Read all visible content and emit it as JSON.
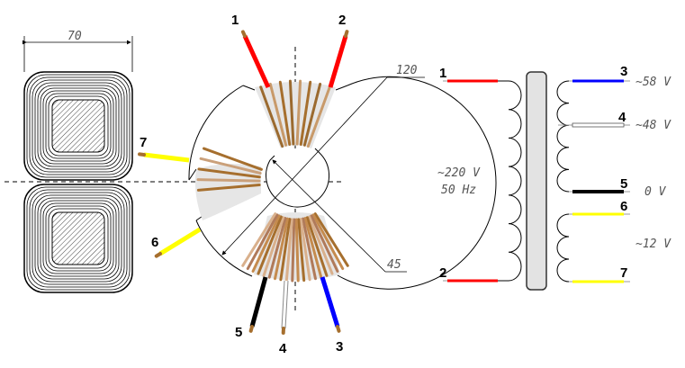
{
  "cross_section": {
    "width_label": "70"
  },
  "toroid": {
    "outer_diameter_label": "120",
    "inner_diameter_label": "45",
    "leads": [
      {
        "id": "1",
        "color": "#ff0000"
      },
      {
        "id": "2",
        "color": "#ff0000"
      },
      {
        "id": "3",
        "color": "#0000ff"
      },
      {
        "id": "4",
        "color": "#ffffff"
      },
      {
        "id": "5",
        "color": "#000000"
      },
      {
        "id": "6",
        "color": "#ffff00"
      },
      {
        "id": "7",
        "color": "#ffff00"
      }
    ]
  },
  "schematic": {
    "primary": {
      "voltage": "~220 V",
      "frequency": "50 Hz",
      "pin_top": "1",
      "pin_bottom": "2"
    },
    "secondary": [
      {
        "pin": "3",
        "voltage": "~58 V",
        "color": "#0000ff"
      },
      {
        "pin": "4",
        "voltage": "~48 V",
        "color": "#ffffff"
      },
      {
        "pin": "5",
        "voltage": "0 V",
        "color": "#000000"
      },
      {
        "pin": "6",
        "voltage": "",
        "color": "#ffff00"
      },
      {
        "pin": "7",
        "voltage": "~12 V",
        "color": "#ffff00"
      }
    ]
  }
}
